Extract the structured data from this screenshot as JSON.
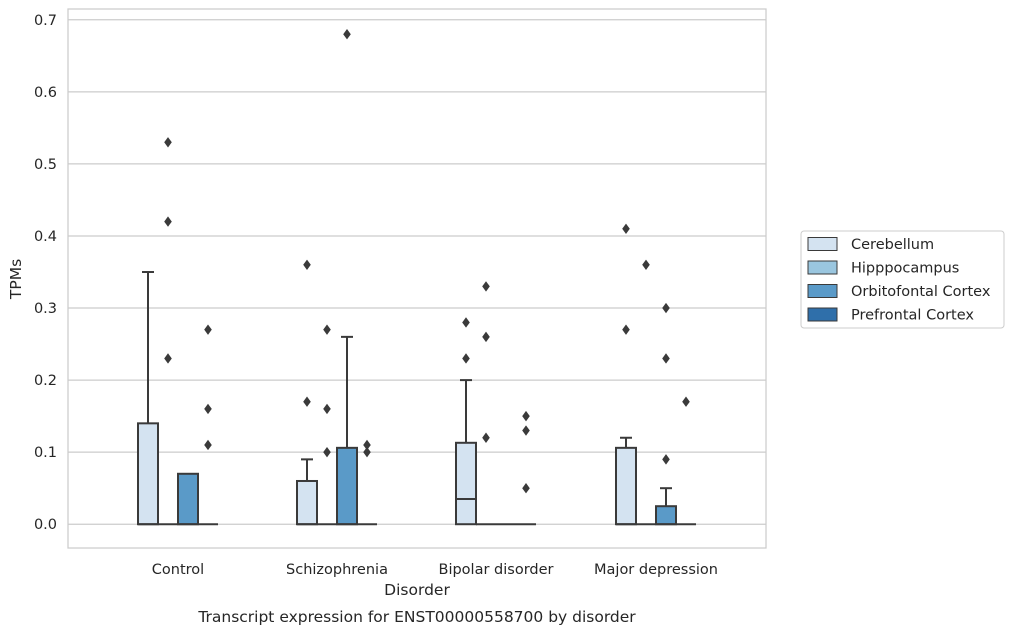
{
  "chart_data": {
    "type": "box",
    "title": "",
    "caption": "Transcript expression for ENST00000558700 by disorder",
    "xlabel": "Disorder",
    "ylabel": "TPMs",
    "ylim": [
      -0.033,
      0.715
    ],
    "yticks": [
      0.0,
      0.1,
      0.2,
      0.3,
      0.4,
      0.5,
      0.6,
      0.7
    ],
    "ytick_labels": [
      "0.0",
      "0.1",
      "0.2",
      "0.3",
      "0.4",
      "0.5",
      "0.6",
      "0.7"
    ],
    "grid": "horizontal",
    "legend_position": "right",
    "categories": [
      "Control",
      "Schizophrenia",
      "Bipolar disorder",
      "Major depression"
    ],
    "series": [
      {
        "name": "Cerebellum",
        "color": "#d4e3f1",
        "boxes": [
          {
            "q1": 0.0,
            "median": 0.0,
            "q3": 0.14,
            "whisker_low": 0.0,
            "whisker_high": 0.35,
            "outliers": []
          },
          {
            "q1": 0.0,
            "median": 0.0,
            "q3": 0.06,
            "whisker_low": 0.0,
            "whisker_high": 0.09,
            "outliers": [
              0.17,
              0.36
            ]
          },
          {
            "q1": 0.0,
            "median": 0.035,
            "q3": 0.113,
            "whisker_low": 0.0,
            "whisker_high": 0.2,
            "outliers": [
              0.23,
              0.28
            ]
          },
          {
            "q1": 0.0,
            "median": 0.0,
            "q3": 0.106,
            "whisker_low": 0.0,
            "whisker_high": 0.12,
            "outliers": [
              0.27,
              0.41
            ]
          }
        ]
      },
      {
        "name": "Hipppocampus",
        "color": "#9ac6df",
        "boxes": [
          {
            "q1": 0.0,
            "median": 0.0,
            "q3": 0.0,
            "whisker_low": 0.0,
            "whisker_high": 0.0,
            "outliers": [
              0.23,
              0.42,
              0.53
            ]
          },
          {
            "q1": 0.0,
            "median": 0.0,
            "q3": 0.0,
            "whisker_low": 0.0,
            "whisker_high": 0.0,
            "outliers": [
              0.1,
              0.16,
              0.27
            ]
          },
          {
            "q1": 0.0,
            "median": 0.0,
            "q3": 0.0,
            "whisker_low": 0.0,
            "whisker_high": 0.0,
            "outliers": [
              0.12,
              0.26,
              0.33
            ]
          },
          {
            "q1": 0.0,
            "median": 0.0,
            "q3": 0.0,
            "whisker_low": 0.0,
            "whisker_high": 0.0,
            "outliers": [
              0.36
            ]
          }
        ]
      },
      {
        "name": "Orbitofontal Cortex",
        "color": "#5a9ac8",
        "boxes": [
          {
            "q1": 0.0,
            "median": 0.0,
            "q3": 0.07,
            "whisker_low": 0.0,
            "whisker_high": 0.07,
            "outliers": []
          },
          {
            "q1": 0.0,
            "median": 0.0,
            "q3": 0.106,
            "whisker_low": 0.0,
            "whisker_high": 0.26,
            "outliers": [
              0.68
            ]
          },
          {
            "q1": 0.0,
            "median": 0.0,
            "q3": 0.0,
            "whisker_low": 0.0,
            "whisker_high": 0.0,
            "outliers": []
          },
          {
            "q1": 0.0,
            "median": 0.0,
            "q3": 0.025,
            "whisker_low": 0.0,
            "whisker_high": 0.05,
            "outliers": [
              0.09,
              0.23,
              0.3
            ]
          }
        ]
      },
      {
        "name": "Prefrontal Cortex",
        "color": "#2f6faa",
        "boxes": [
          {
            "q1": 0.0,
            "median": 0.0,
            "q3": 0.0,
            "whisker_low": 0.0,
            "whisker_high": 0.0,
            "outliers": [
              0.11,
              0.16,
              0.27
            ]
          },
          {
            "q1": 0.0,
            "median": 0.0,
            "q3": 0.0,
            "whisker_low": 0.0,
            "whisker_high": 0.0,
            "outliers": [
              0.1,
              0.11
            ]
          },
          {
            "q1": 0.0,
            "median": 0.0,
            "q3": 0.0,
            "whisker_low": 0.0,
            "whisker_high": 0.0,
            "outliers": [
              0.05,
              0.13,
              0.15
            ]
          },
          {
            "q1": 0.0,
            "median": 0.0,
            "q3": 0.0,
            "whisker_low": 0.0,
            "whisker_high": 0.0,
            "outliers": [
              0.17
            ]
          }
        ]
      }
    ],
    "colors": {
      "edge": "#3a3a3a",
      "grid": "#cccccc",
      "frame": "#cccccc",
      "outlier": "#3a3a3a"
    }
  }
}
